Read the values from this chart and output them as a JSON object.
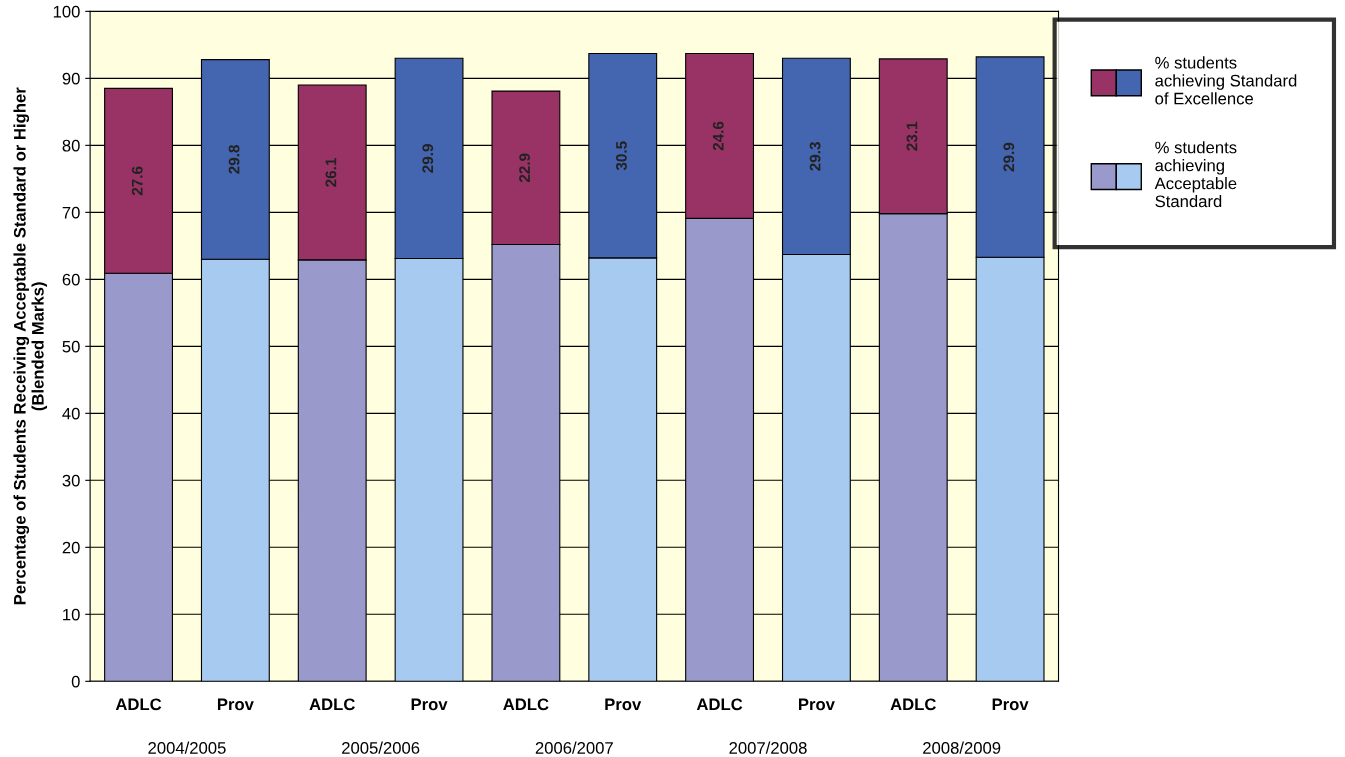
{
  "chart_data": {
    "type": "bar",
    "stacked": true,
    "ylabel": "Percentage of Students Receiving Acceptable Standard or Higher\n(Blended Marks)",
    "categories": [
      "ADLC",
      "Prov",
      "ADLC",
      "Prov",
      "ADLC",
      "Prov",
      "ADLC",
      "Prov",
      "ADLC",
      "Prov"
    ],
    "series": [
      {
        "name": "% students\nachieving\nAcceptable\nStandard",
        "colors": [
          "#9999cc",
          "#a6caf0",
          "#9999cc",
          "#a6caf0",
          "#9999cc",
          "#a6caf0",
          "#9999cc",
          "#a6caf0",
          "#9999cc",
          "#a6caf0"
        ],
        "values": [
          60.9,
          63.0,
          62.9,
          63.1,
          65.2,
          63.2,
          69.1,
          63.7,
          69.8,
          63.3
        ]
      },
      {
        "name": "% students\nachieving Standard\nof Excellence",
        "colors": [
          "#993366",
          "#4466b0",
          "#993366",
          "#4466b0",
          "#993366",
          "#4466b0",
          "#993366",
          "#4466b0",
          "#993366",
          "#4466b0"
        ],
        "values": [
          27.6,
          29.8,
          26.1,
          29.9,
          22.9,
          30.5,
          24.6,
          29.3,
          23.1,
          29.9
        ],
        "data_labels": true
      }
    ],
    "annotations": [
      "2004/2005",
      "2005/2006",
      "2006/2007",
      "2007/2008",
      "2008/2009"
    ],
    "ylim": [
      0,
      100
    ],
    "yticks": [
      0,
      10,
      20,
      30,
      40,
      50,
      60,
      70,
      80,
      90,
      100
    ],
    "grid": "y",
    "legend": "top right"
  }
}
